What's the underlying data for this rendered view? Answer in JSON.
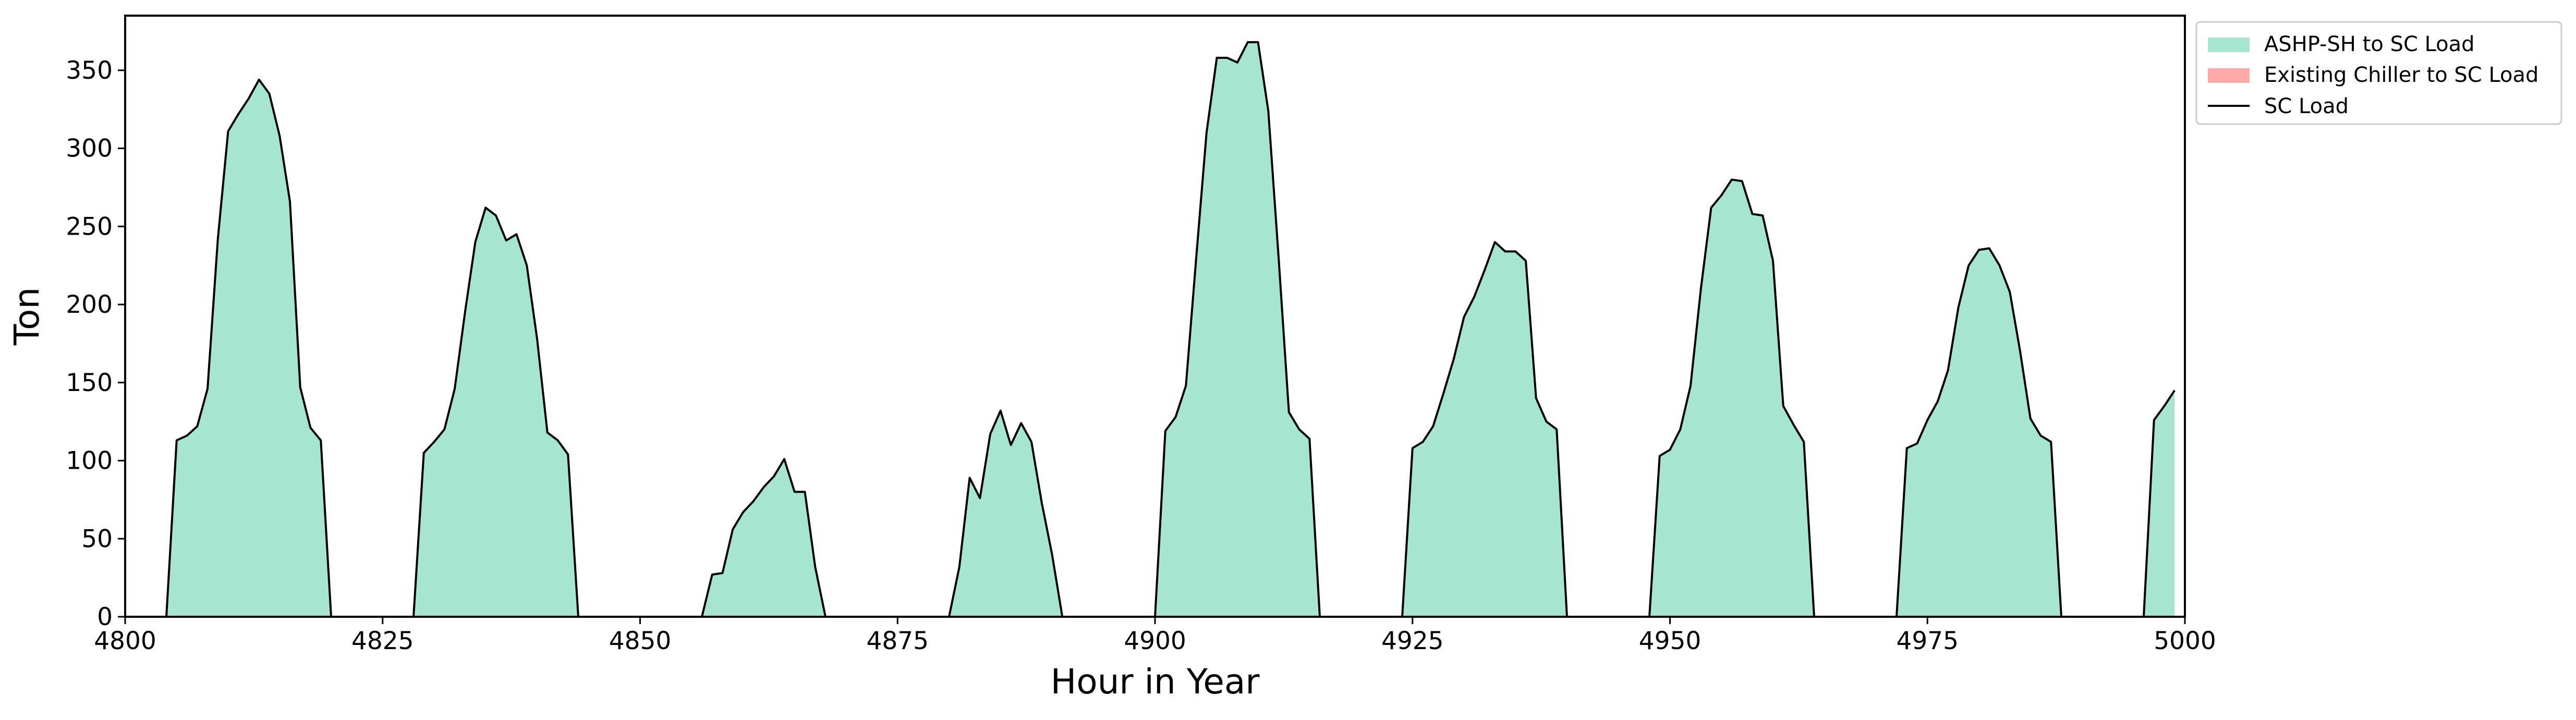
{
  "chart_data": {
    "type": "area",
    "title": "",
    "xlabel": "Hour in Year",
    "ylabel": "Ton",
    "xlim": [
      4800,
      5000
    ],
    "ylim": [
      0,
      385
    ],
    "xticks": [
      4800,
      4825,
      4850,
      4875,
      4900,
      4925,
      4950,
      4975,
      5000
    ],
    "yticks": [
      0,
      50,
      100,
      150,
      200,
      250,
      300,
      350
    ],
    "grid": false,
    "legend_position": "outside-top-right",
    "colors": {
      "ashp_fill": "#a8e5d0",
      "chiller_fill": "#ffaaaa",
      "load_line": "#000000",
      "axis": "#000000"
    },
    "legend": [
      {
        "label": "ASHP-SH to SC Load",
        "kind": "patch",
        "color": "#a8e5d0"
      },
      {
        "label": "Existing Chiller to SC Load",
        "kind": "patch",
        "color": "#ffaaaa"
      },
      {
        "label": "SC Load",
        "kind": "line",
        "color": "#000000"
      }
    ],
    "series": [
      {
        "name": "SC Load",
        "x": [
          4800,
          4801,
          4802,
          4803,
          4804,
          4805,
          4806,
          4807,
          4808,
          4809,
          4810,
          4811,
          4812,
          4813,
          4814,
          4815,
          4816,
          4817,
          4818,
          4819,
          4820,
          4821,
          4822,
          4823,
          4824,
          4825,
          4826,
          4827,
          4828,
          4829,
          4830,
          4831,
          4832,
          4833,
          4834,
          4835,
          4836,
          4837,
          4838,
          4839,
          4840,
          4841,
          4842,
          4843,
          4844,
          4845,
          4846,
          4847,
          4848,
          4849,
          4850,
          4851,
          4852,
          4853,
          4854,
          4855,
          4856,
          4857,
          4858,
          4859,
          4860,
          4861,
          4862,
          4863,
          4864,
          4865,
          4866,
          4867,
          4868,
          4869,
          4870,
          4871,
          4872,
          4873,
          4874,
          4875,
          4876,
          4877,
          4878,
          4879,
          4880,
          4881,
          4882,
          4883,
          4884,
          4885,
          4886,
          4887,
          4888,
          4889,
          4890,
          4891,
          4892,
          4893,
          4894,
          4895,
          4896,
          4897,
          4898,
          4899,
          4900,
          4901,
          4902,
          4903,
          4904,
          4905,
          4906,
          4907,
          4908,
          4909,
          4910,
          4911,
          4912,
          4913,
          4914,
          4915,
          4916,
          4917,
          4918,
          4919,
          4920,
          4921,
          4922,
          4923,
          4924,
          4925,
          4926,
          4927,
          4928,
          4929,
          4930,
          4931,
          4932,
          4933,
          4934,
          4935,
          4936,
          4937,
          4938,
          4939,
          4940,
          4941,
          4942,
          4943,
          4944,
          4945,
          4946,
          4947,
          4948,
          4949,
          4950,
          4951,
          4952,
          4953,
          4954,
          4955,
          4956,
          4957,
          4958,
          4959,
          4960,
          4961,
          4962,
          4963,
          4964,
          4965,
          4966,
          4967,
          4968,
          4969,
          4970,
          4971,
          4972,
          4973,
          4974,
          4975,
          4976,
          4977,
          4978,
          4979,
          4980,
          4981,
          4982,
          4983,
          4984,
          4985,
          4986,
          4987,
          4988,
          4989,
          4990,
          4991,
          4992,
          4993,
          4994,
          4995,
          4996,
          4997,
          4998,
          4999
        ],
        "values": [
          0,
          0,
          0,
          0,
          0,
          113,
          116,
          122,
          146,
          242,
          311,
          322,
          332,
          344,
          335,
          308,
          266,
          147,
          121,
          113,
          0,
          0,
          0,
          0,
          0,
          0,
          0,
          0,
          0,
          105,
          112,
          120,
          146,
          195,
          240,
          262,
          257,
          241,
          245,
          225,
          178,
          118,
          113,
          104,
          0,
          0,
          0,
          0,
          0,
          0,
          0,
          0,
          0,
          0,
          0,
          0,
          0,
          27,
          28,
          56,
          67,
          74,
          83,
          90,
          101,
          80,
          80,
          32,
          0,
          0,
          0,
          0,
          0,
          0,
          0,
          0,
          0,
          0,
          0,
          0,
          0,
          32,
          89,
          76,
          117,
          132,
          110,
          124,
          112,
          73,
          40,
          0,
          0,
          0,
          0,
          0,
          0,
          0,
          0,
          0,
          0,
          119,
          128,
          148,
          230,
          310,
          358,
          358,
          355,
          368,
          368,
          324,
          230,
          131,
          120,
          114,
          0,
          0,
          0,
          0,
          0,
          0,
          0,
          0,
          0,
          108,
          112,
          122,
          143,
          165,
          192,
          205,
          222,
          240,
          234,
          234,
          228,
          140,
          125,
          120,
          0,
          0,
          0,
          0,
          0,
          0,
          0,
          0,
          0,
          103,
          107,
          120,
          148,
          210,
          262,
          270,
          280,
          279,
          258,
          257,
          228,
          135,
          123,
          112,
          0,
          0,
          0,
          0,
          0,
          0,
          0,
          0,
          0,
          108,
          111,
          126,
          138,
          158,
          198,
          225,
          235,
          236,
          225,
          208,
          170,
          127,
          116,
          112,
          0,
          0,
          0,
          0,
          0,
          0,
          0,
          0,
          0,
          126,
          135,
          145
        ]
      },
      {
        "name": "ASHP-SH to SC Load",
        "values_note": "equals SC Load"
      },
      {
        "name": "Existing Chiller to SC Load",
        "values_note": "zero"
      }
    ]
  }
}
